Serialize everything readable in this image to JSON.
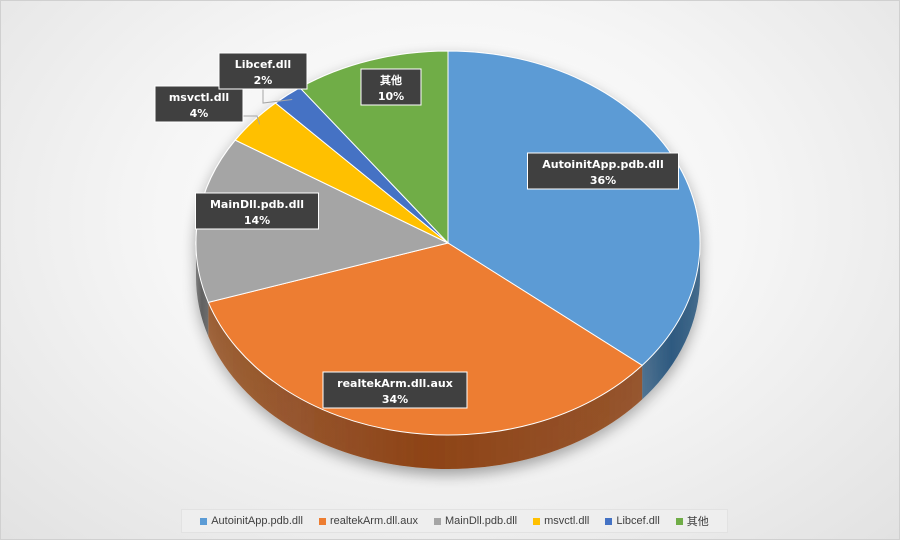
{
  "chart_data": {
    "type": "pie",
    "style": "3d",
    "title": "",
    "slices": [
      {
        "label": "AutoinitApp.pdb.dll",
        "value": 36,
        "percent_label": "36%",
        "color": "#5b9bd5",
        "side": "#2e5a80"
      },
      {
        "label": "realtekArm.dll.aux",
        "value": 34,
        "percent_label": "34%",
        "color": "#ed7d31",
        "side": "#8e4414"
      },
      {
        "label": "MainDll.pdb.dll",
        "value": 14,
        "percent_label": "14%",
        "color": "#a5a5a5",
        "side": "#606060"
      },
      {
        "label": "msvctl.dll",
        "value": 4,
        "percent_label": "4%",
        "color": "#ffc000",
        "side": "#8c6a00"
      },
      {
        "label": "Libcef.dll",
        "value": 2,
        "percent_label": "2%",
        "color": "#4472c4",
        "side": "#223c6c"
      },
      {
        "label": "其他",
        "value": 10,
        "percent_label": "10%",
        "color": "#70ad47",
        "side": "#3d6125"
      }
    ],
    "legend": {
      "position": "bottom"
    }
  }
}
